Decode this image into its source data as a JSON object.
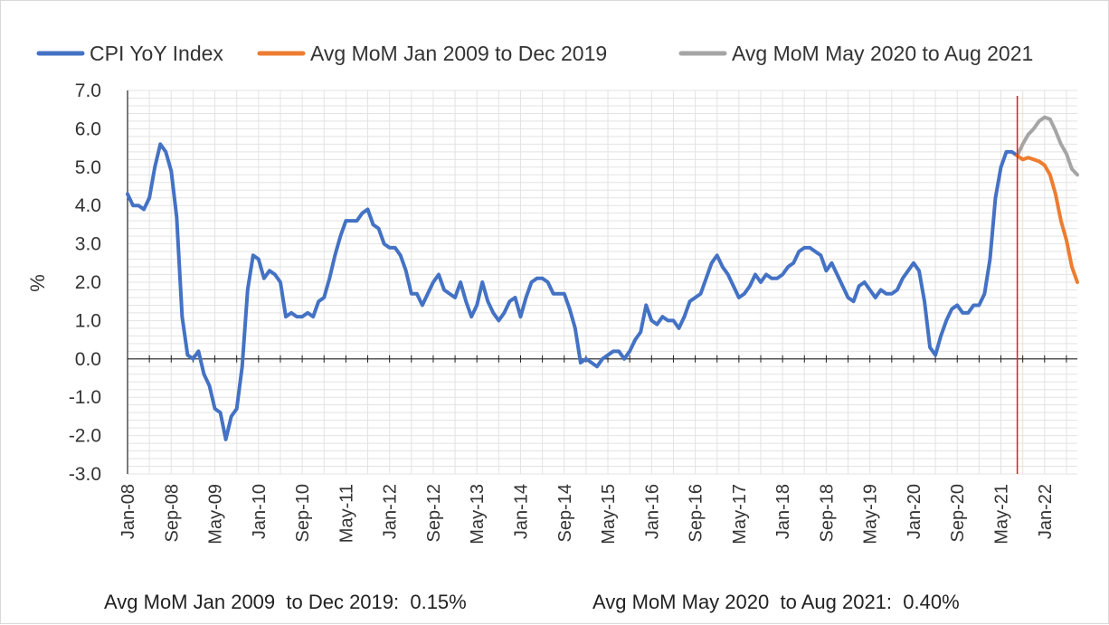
{
  "chart_data": {
    "type": "line",
    "xlabel": "",
    "ylabel": "%",
    "ylim": [
      -3.0,
      7.0
    ],
    "y_ticks": [
      "7.0",
      "6.0",
      "5.0",
      "4.0",
      "3.0",
      "2.0",
      "1.0",
      "0.0",
      "-1.0",
      "-2.0",
      "-3.0"
    ],
    "x_tick_labels": [
      "Jan-08",
      "Sep-08",
      "May-09",
      "Jan-10",
      "Sep-10",
      "May-11",
      "Jan-12",
      "Sep-12",
      "May-13",
      "Jan-14",
      "Sep-14",
      "May-15",
      "Jan-16",
      "Sep-16",
      "May-17",
      "Jan-18",
      "Sep-18",
      "May-19",
      "Jan-20",
      "Sep-20",
      "May-21",
      "Jan-22"
    ],
    "x_start": "Jan-08",
    "x_end": "Jul-22",
    "grid": true,
    "legend_position": "top",
    "vertical_marker": {
      "x": "Aug-21",
      "color": "#e31a1c"
    },
    "series": [
      {
        "name": "CPI YoY Index",
        "color": "#4472c4",
        "x_start": "Jan-08",
        "values": [
          4.3,
          4.0,
          4.0,
          3.9,
          4.2,
          5.0,
          5.6,
          5.4,
          4.9,
          3.7,
          1.1,
          0.1,
          0.0,
          0.2,
          -0.4,
          -0.7,
          -1.3,
          -1.4,
          -2.1,
          -1.5,
          -1.3,
          -0.2,
          1.8,
          2.7,
          2.6,
          2.1,
          2.3,
          2.2,
          2.0,
          1.1,
          1.2,
          1.1,
          1.1,
          1.2,
          1.1,
          1.5,
          1.6,
          2.1,
          2.7,
          3.2,
          3.6,
          3.6,
          3.6,
          3.8,
          3.9,
          3.5,
          3.4,
          3.0,
          2.9,
          2.9,
          2.7,
          2.3,
          1.7,
          1.7,
          1.4,
          1.7,
          2.0,
          2.2,
          1.8,
          1.7,
          1.6,
          2.0,
          1.5,
          1.1,
          1.4,
          2.0,
          1.5,
          1.2,
          1.0,
          1.2,
          1.5,
          1.6,
          1.1,
          1.6,
          2.0,
          2.1,
          2.1,
          2.0,
          1.7,
          1.7,
          1.7,
          1.3,
          0.8,
          -0.1,
          0.0,
          -0.1,
          -0.2,
          0.0,
          0.1,
          0.2,
          0.2,
          0.0,
          0.2,
          0.5,
          0.7,
          1.4,
          1.0,
          0.9,
          1.1,
          1.0,
          1.0,
          0.8,
          1.1,
          1.5,
          1.6,
          1.7,
          2.1,
          2.5,
          2.7,
          2.4,
          2.2,
          1.9,
          1.6,
          1.7,
          1.9,
          2.2,
          2.0,
          2.2,
          2.1,
          2.1,
          2.2,
          2.4,
          2.5,
          2.8,
          2.9,
          2.9,
          2.8,
          2.7,
          2.3,
          2.5,
          2.2,
          1.9,
          1.6,
          1.5,
          1.9,
          2.0,
          1.8,
          1.6,
          1.8,
          1.7,
          1.7,
          1.8,
          2.1,
          2.3,
          2.5,
          2.3,
          1.5,
          0.3,
          0.1,
          0.6,
          1.0,
          1.3,
          1.4,
          1.2,
          1.2,
          1.4,
          1.4,
          1.7,
          2.6,
          4.2,
          5.0,
          5.4,
          5.4,
          5.3
        ]
      },
      {
        "name": "Avg MoM Jan 2009 to Dec 2019",
        "color": "#ed7d31",
        "x_start": "Aug-21",
        "values": [
          5.3,
          5.2,
          5.25,
          5.2,
          5.15,
          5.05,
          4.8,
          4.3,
          3.6,
          3.1,
          2.4,
          2.0
        ]
      },
      {
        "name": "Avg MoM May 2020 to Aug 2021",
        "color": "#a5a5a5",
        "x_start": "Aug-21",
        "values": [
          5.3,
          5.6,
          5.85,
          6.0,
          6.2,
          6.3,
          6.25,
          5.95,
          5.6,
          5.35,
          4.95,
          4.8
        ]
      }
    ],
    "annotations": [
      "Avg MoM Jan 2009  to Dec 2019:  0.15%",
      "Avg MoM May 2020  to Aug 2021:  0.40%"
    ]
  }
}
